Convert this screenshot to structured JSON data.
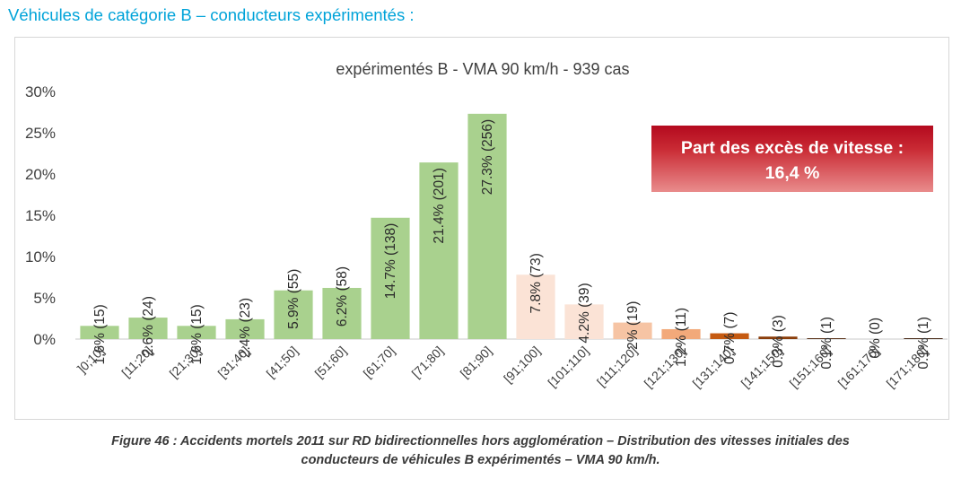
{
  "section_heading": "Véhicules de catégorie B – conducteurs expérimentés :",
  "caption": {
    "line1": "Figure 46 : Accidents mortels 2011 sur RD bidirectionnelles hors agglomération – Distribution des vitesses initiales des",
    "line2": "conducteurs de véhicules B expérimentés – VMA 90 km/h."
  },
  "callout": {
    "line1": "Part des excès de vitesse :",
    "line2": "16,4 %"
  },
  "chart_data": {
    "type": "bar",
    "title": "expérimentés B - VMA 90 km/h - 939 cas",
    "xlabel": "",
    "ylabel": "",
    "ylim": [
      0,
      30
    ],
    "yticks": [
      "0%",
      "5%",
      "10%",
      "15%",
      "20%",
      "25%",
      "30%"
    ],
    "grid": false,
    "categories": [
      "]0;10]",
      "[11;20]",
      "[21;30]",
      "[31;40]",
      "[41;50]",
      "[51;60]",
      "[61;70]",
      "[71;80]",
      "[81;90]",
      "[91;100]",
      "[101;110]",
      "[111;120]",
      "[121;130]",
      "[131;140]",
      "[141;150]",
      "[151;160]",
      "[161;170]",
      "[171;180]"
    ],
    "values": [
      1.6,
      2.6,
      1.6,
      2.4,
      5.9,
      6.2,
      14.7,
      21.4,
      27.3,
      7.8,
      4.2,
      2.0,
      1.2,
      0.7,
      0.3,
      0.1,
      0.0,
      0.1
    ],
    "labels": [
      "1.6% (15)",
      "2.6% (24)",
      "1.6% (15)",
      "2.4% (23)",
      "5.9% (55)",
      "6.2% (58)",
      "14.7% (138)",
      "21.4% (201)",
      "27.3% (256)",
      "7.8% (73)",
      "4.2% (39)",
      "2% (19)",
      "1.2% (11)",
      "0.7% (7)",
      "0.3% (3)",
      "0.1% (1)",
      "0% (0)",
      "0.1% (1)"
    ],
    "colors": [
      "#a9d18e",
      "#a9d18e",
      "#a9d18e",
      "#a9d18e",
      "#a9d18e",
      "#a9d18e",
      "#a9d18e",
      "#a9d18e",
      "#a9d18e",
      "#fbe3d6",
      "#fbe3d6",
      "#f6c4a4",
      "#f2a97a",
      "#c55a11",
      "#8a3d0a",
      "#4d2206",
      "#4d2206",
      "#3a1905"
    ]
  }
}
